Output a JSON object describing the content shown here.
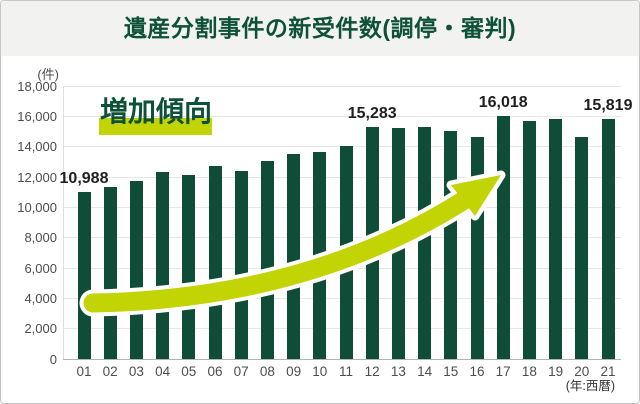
{
  "title": "遺産分割事件の新受件数(調停・審判)",
  "y_axis": {
    "unit_label": "(件)",
    "ticks": [
      "0",
      "2,000",
      "4,000",
      "6,000",
      "8,000",
      "10,000",
      "12,000",
      "14,000",
      "16,000",
      "18,000"
    ],
    "step": 2000,
    "max": 18000
  },
  "x_axis": {
    "unit_label": "(年:西暦)"
  },
  "annotation": {
    "trend_label": "増加傾向"
  },
  "colors": {
    "bar": "#0f4d39",
    "accent": "#c2d404",
    "arrow_outline": "#ffffff",
    "title_text": "#0d5138",
    "title_bg": "#f2f2f1",
    "grid": "#e7e7e7",
    "axis": "#b3b3b3",
    "axis_left": "#dedede",
    "tick_text": "#4d4d4d",
    "value_text": "#1f1f1f"
  },
  "chart_data": {
    "type": "bar",
    "title": "遺産分割事件の新受件数(調停・審判)",
    "ylabel": "(件)",
    "xlabel": "(年:西暦)",
    "ylim": [
      0,
      18000
    ],
    "grid": true,
    "legend": false,
    "categories": [
      "01",
      "02",
      "03",
      "04",
      "05",
      "06",
      "07",
      "08",
      "09",
      "10",
      "11",
      "12",
      "13",
      "14",
      "15",
      "16",
      "17",
      "18",
      "19",
      "20",
      "21"
    ],
    "values": [
      10988,
      11350,
      11740,
      12330,
      12130,
      12720,
      12390,
      13050,
      13540,
      13670,
      14060,
      15283,
      15230,
      15290,
      15040,
      14650,
      16018,
      15690,
      15820,
      14650,
      15819
    ],
    "labeled_points": [
      {
        "index": 0,
        "label": "10,988"
      },
      {
        "index": 11,
        "label": "15,283"
      },
      {
        "index": 16,
        "label": "16,018"
      },
      {
        "index": 20,
        "label": "15,819"
      }
    ],
    "annotations": [
      "増加傾向",
      "upward trend arrow"
    ]
  }
}
